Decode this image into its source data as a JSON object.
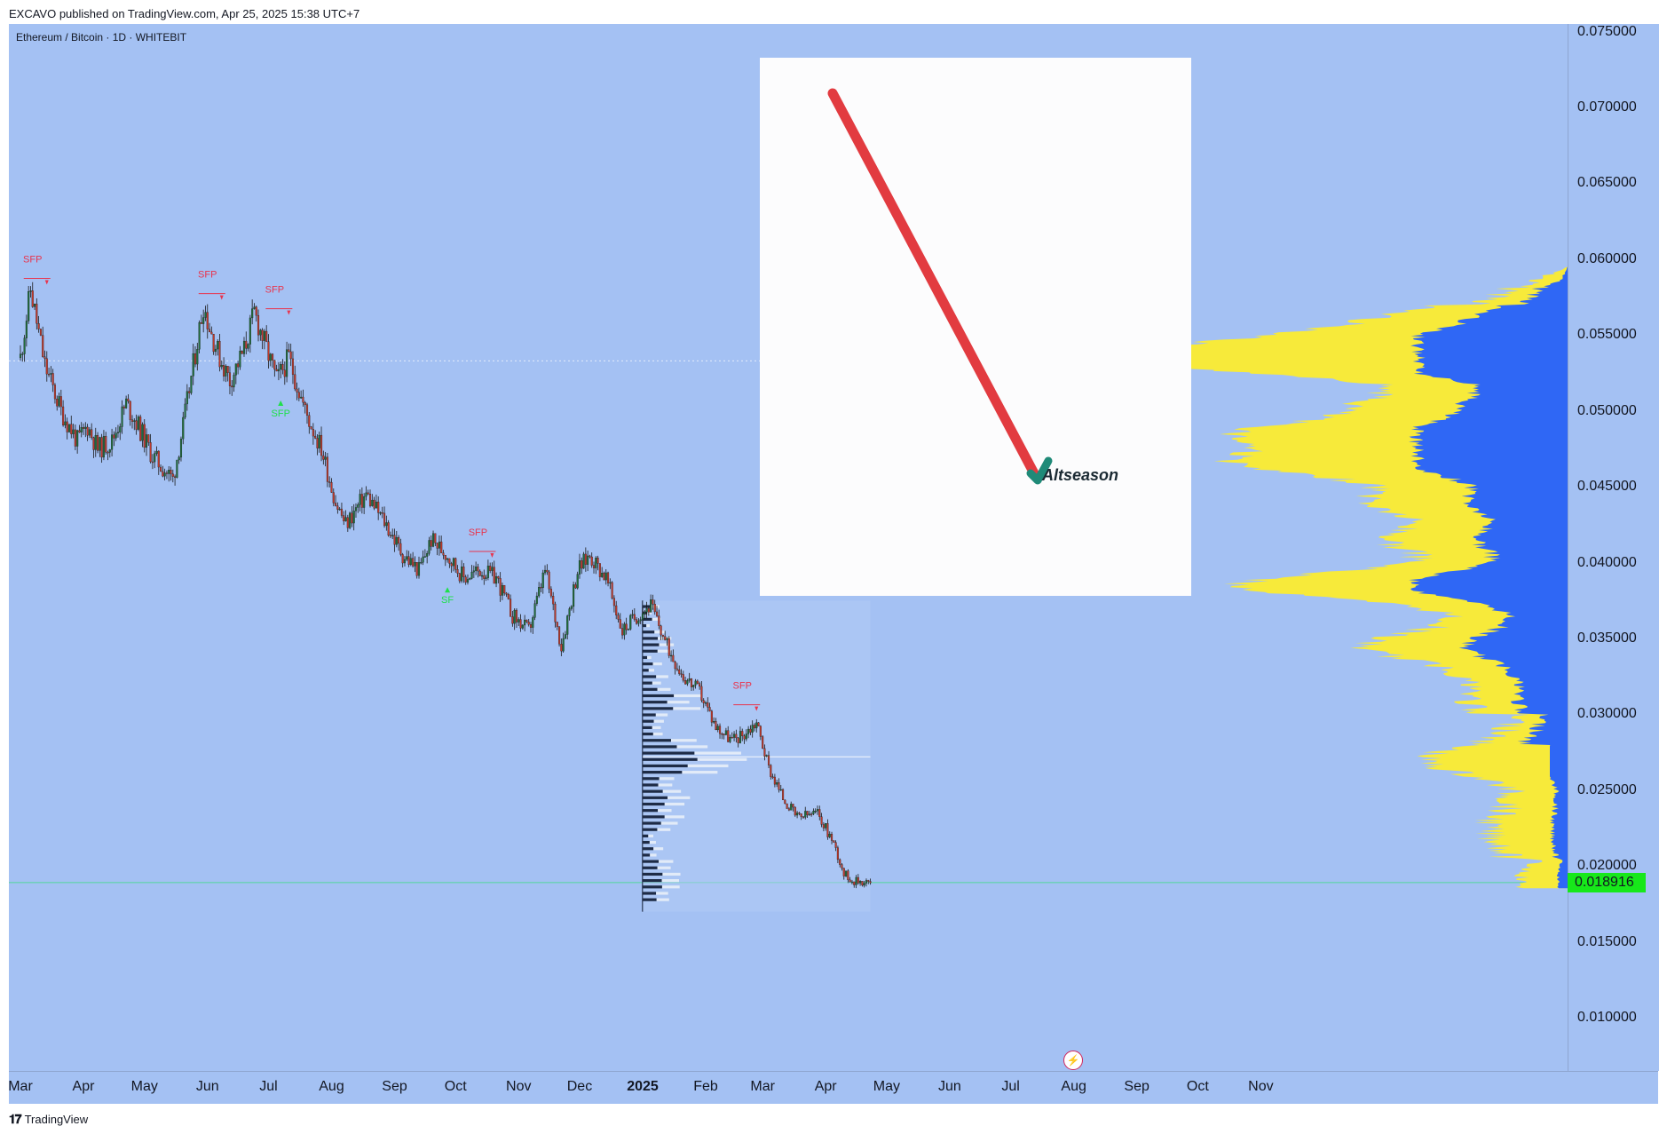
{
  "header": {
    "publisher": "EXCAVO published on TradingView.com, Apr 25, 2025 15:38 UTC+7"
  },
  "symbol": {
    "title": "Ethereum / Bitcoin · 1D · WHITEBIT"
  },
  "footer": {
    "brand": "TradingView"
  },
  "inset": {
    "label": "Altseason",
    "line_color": "#e23b40",
    "check_color": "#1f8a78"
  },
  "colors": {
    "background": "#a4c1f3",
    "candle_up": "#1f6d3a",
    "candle_down": "#c0392b",
    "profile_yellow": "#f7ea3a",
    "profile_blue": "#2f67f5",
    "sfp_red": "#e8344d",
    "sfp_green": "#1fe04a",
    "current_price_bg": "#17e81a"
  },
  "chart_data": {
    "type": "candlestick",
    "title": "Ethereum / Bitcoin · 1D · WHITEBIT",
    "ylim": [
      0.0065,
      0.0755
    ],
    "price_ticks": [
      "0.075000",
      "0.070000",
      "0.065000",
      "0.060000",
      "0.055000",
      "0.050000",
      "0.045000",
      "0.040000",
      "0.035000",
      "0.030000",
      "0.025000",
      "0.020000",
      "0.015000",
      "0.010000"
    ],
    "current_price": "0.018916",
    "time_ticks": [
      {
        "label": "Mar",
        "day": 0
      },
      {
        "label": "Apr",
        "day": 31
      },
      {
        "label": "May",
        "day": 61
      },
      {
        "label": "Jun",
        "day": 92
      },
      {
        "label": "Jul",
        "day": 122
      },
      {
        "label": "Aug",
        "day": 153
      },
      {
        "label": "Sep",
        "day": 184
      },
      {
        "label": "Oct",
        "day": 214
      },
      {
        "label": "Nov",
        "day": 245
      },
      {
        "label": "Dec",
        "day": 275
      },
      {
        "label": "2025",
        "day": 306,
        "bold": true
      },
      {
        "label": "Feb",
        "day": 337
      },
      {
        "label": "Mar",
        "day": 365
      },
      {
        "label": "Apr",
        "day": 396
      },
      {
        "label": "May",
        "day": 426
      },
      {
        "label": "Jun",
        "day": 457
      },
      {
        "label": "Jul",
        "day": 487
      },
      {
        "label": "Aug",
        "day": 518
      },
      {
        "label": "Sep",
        "day": 549
      },
      {
        "label": "Oct",
        "day": 579
      },
      {
        "label": "Nov",
        "day": 610
      }
    ],
    "price_path": [
      [
        0,
        0.0535
      ],
      [
        5,
        0.058
      ],
      [
        12,
        0.053
      ],
      [
        20,
        0.05
      ],
      [
        28,
        0.048
      ],
      [
        33,
        0.049
      ],
      [
        38,
        0.0475
      ],
      [
        45,
        0.048
      ],
      [
        52,
        0.0505
      ],
      [
        58,
        0.049
      ],
      [
        65,
        0.047
      ],
      [
        75,
        0.0455
      ],
      [
        80,
        0.049
      ],
      [
        85,
        0.053
      ],
      [
        90,
        0.057
      ],
      [
        93,
        0.0555
      ],
      [
        98,
        0.0535
      ],
      [
        103,
        0.052
      ],
      [
        110,
        0.054
      ],
      [
        115,
        0.0565
      ],
      [
        120,
        0.0545
      ],
      [
        126,
        0.052
      ],
      [
        132,
        0.0535
      ],
      [
        140,
        0.05
      ],
      [
        148,
        0.0475
      ],
      [
        155,
        0.044
      ],
      [
        160,
        0.0425
      ],
      [
        170,
        0.0445
      ],
      [
        180,
        0.0425
      ],
      [
        188,
        0.0405
      ],
      [
        196,
        0.0395
      ],
      [
        202,
        0.0415
      ],
      [
        210,
        0.0405
      ],
      [
        218,
        0.039
      ],
      [
        226,
        0.0395
      ],
      [
        234,
        0.039
      ],
      [
        242,
        0.0365
      ],
      [
        250,
        0.0355
      ],
      [
        258,
        0.0395
      ],
      [
        266,
        0.0345
      ],
      [
        274,
        0.0395
      ],
      [
        280,
        0.0405
      ],
      [
        288,
        0.039
      ],
      [
        296,
        0.0355
      ],
      [
        303,
        0.0365
      ],
      [
        310,
        0.0372
      ],
      [
        318,
        0.0345
      ],
      [
        326,
        0.0325
      ],
      [
        334,
        0.0315
      ],
      [
        342,
        0.0292
      ],
      [
        350,
        0.0283
      ],
      [
        356,
        0.0287
      ],
      [
        362,
        0.0295
      ],
      [
        368,
        0.0265
      ],
      [
        375,
        0.0245
      ],
      [
        382,
        0.0232
      ],
      [
        392,
        0.0235
      ],
      [
        400,
        0.0215
      ],
      [
        405,
        0.0195
      ],
      [
        410,
        0.019
      ],
      [
        415,
        0.019
      ],
      [
        418,
        0.0189
      ]
    ],
    "sfp_markers": [
      {
        "label": "SFP",
        "day": 6,
        "price": 0.0585,
        "color": "red"
      },
      {
        "label": "SFP",
        "day": 92,
        "price": 0.0575,
        "color": "red"
      },
      {
        "label": "SFP",
        "day": 125,
        "price": 0.0565,
        "color": "red"
      },
      {
        "label": "SFP",
        "day": 128,
        "price": 0.0508,
        "color": "green"
      },
      {
        "label": "SFP",
        "day": 225,
        "price": 0.0405,
        "color": "red"
      },
      {
        "label": "SF",
        "day": 210,
        "price": 0.0385,
        "color": "green"
      },
      {
        "label": "SFP",
        "day": 355,
        "price": 0.0304,
        "color": "red"
      }
    ],
    "poc_price": 0.0533,
    "session_poc_price": 0.0272
  }
}
